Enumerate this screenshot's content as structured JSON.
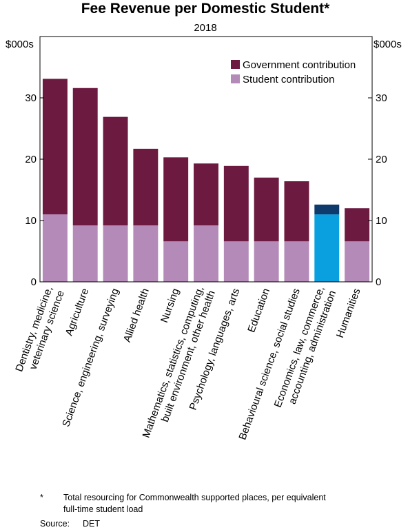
{
  "chart_data": {
    "type": "stacked-bar",
    "title": "Fee Revenue per Domestic Student*",
    "subtitle": "2018",
    "y_label": "$000s",
    "y2_label": "$000s",
    "categories": [
      [
        "Dentistry, medicine,",
        "veterinary science"
      ],
      [
        "Agriculture"
      ],
      [
        "Science, engineering, surveying"
      ],
      [
        "Allied health"
      ],
      [
        "Nursing"
      ],
      [
        "Mathematics, statistics, computing,",
        "built environment, other health"
      ],
      [
        "Psychology, languages, arts"
      ],
      [
        "Education"
      ],
      [
        "Behavioural science, social studies"
      ],
      [
        "Economics, law, commerce,",
        "accounting, administration"
      ],
      [
        "Humanities"
      ]
    ],
    "series": [
      {
        "name": "Student contribution",
        "color": "#b48ab9",
        "values": [
          11.0,
          9.2,
          9.2,
          9.2,
          6.6,
          9.2,
          6.6,
          6.6,
          6.6,
          11.0,
          6.6
        ],
        "colors": [
          "#b48ab9",
          "#b48ab9",
          "#b48ab9",
          "#b48ab9",
          "#b48ab9",
          "#b48ab9",
          "#b48ab9",
          "#b48ab9",
          "#b48ab9",
          "#0aa0df",
          "#b48ab9"
        ]
      },
      {
        "name": "Government contribution",
        "color": "#6d1a40",
        "values": [
          22.1,
          22.4,
          17.7,
          12.5,
          13.7,
          10.1,
          12.3,
          10.4,
          9.8,
          1.6,
          5.4
        ],
        "colors": [
          "#6d1a40",
          "#6d1a40",
          "#6d1a40",
          "#6d1a40",
          "#6d1a40",
          "#6d1a40",
          "#6d1a40",
          "#6d1a40",
          "#6d1a40",
          "#0e3b6b",
          "#6d1a40"
        ]
      }
    ],
    "legend_order": [
      1,
      0
    ],
    "ylim": [
      0,
      40
    ],
    "yticks": [
      0,
      10,
      20,
      30
    ],
    "y2lim": [
      0,
      40
    ],
    "y2ticks": [
      0,
      10,
      20,
      30
    ],
    "footnote": {
      "marker": "*",
      "text": [
        "Total resourcing for Commonwealth supported places, per equivalent",
        "full-time student load"
      ]
    },
    "source": {
      "label": "Source:",
      "text": "DET"
    }
  }
}
